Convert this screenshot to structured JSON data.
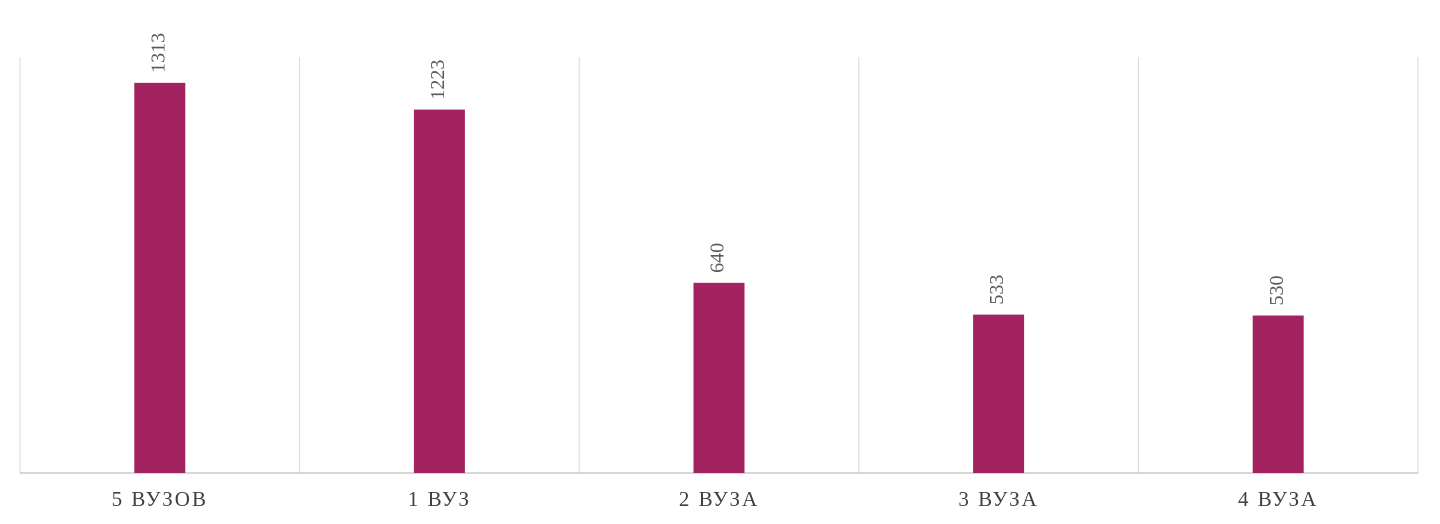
{
  "chart_data": {
    "type": "bar",
    "categories": [
      "5 ВУЗОВ",
      "1 ВУЗ",
      "2 ВУЗА",
      "3 ВУЗА",
      "4 ВУЗА"
    ],
    "values": [
      1313,
      1223,
      640,
      533,
      530
    ],
    "color": "#a2235f",
    "ylim": [
      0,
      1400
    ],
    "data_labels": true
  }
}
